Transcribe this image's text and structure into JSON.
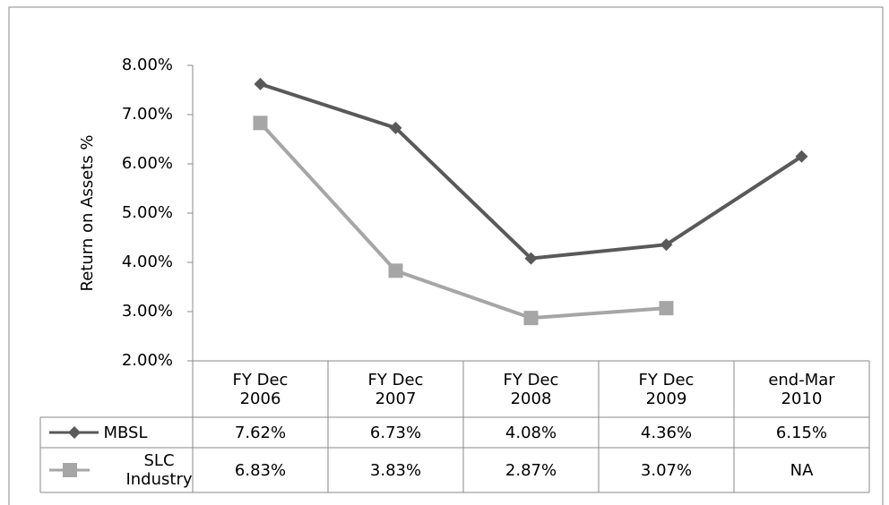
{
  "chart_data": {
    "type": "line",
    "y_label": "Return on Assets %",
    "categories": [
      "FY Dec 2006",
      "FY Dec 2007",
      "FY Dec 2008",
      "FY Dec 2009",
      "end-Mar 2010"
    ],
    "series": [
      {
        "name": "MBSL",
        "color": "#595959",
        "marker": "diamond",
        "values": [
          7.62,
          6.73,
          4.08,
          4.36,
          6.15
        ],
        "value_labels": [
          "7.62%",
          "6.73%",
          "4.08%",
          "4.36%",
          "6.15%"
        ]
      },
      {
        "name": "SLC Industry",
        "color": "#a6a6a6",
        "marker": "square",
        "values": [
          6.83,
          3.83,
          2.87,
          3.07,
          null
        ],
        "value_labels": [
          "6.83%",
          "3.83%",
          "2.87%",
          "3.07%",
          "NA"
        ]
      }
    ],
    "ylim": [
      2,
      8
    ],
    "yticks": [
      {
        "value": 2,
        "label": "2.00%"
      },
      {
        "value": 3,
        "label": "3.00%"
      },
      {
        "value": 4,
        "label": "4.00%"
      },
      {
        "value": 5,
        "label": "5.00%"
      },
      {
        "value": 6,
        "label": "6.00%"
      },
      {
        "value": 7,
        "label": "7.00%"
      },
      {
        "value": 8,
        "label": "8.00%"
      }
    ]
  }
}
